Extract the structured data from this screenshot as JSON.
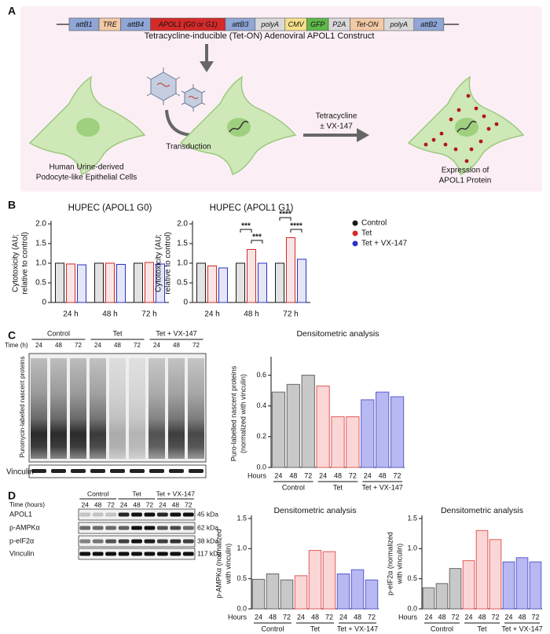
{
  "panel_labels": [
    "A",
    "B",
    "C",
    "D"
  ],
  "construct": {
    "title": "Tetracycline-inducible (Tet-ON) Adenoviral APOL1 Construct",
    "elements": [
      {
        "label": "attB1",
        "color": "#8fa6d6"
      },
      {
        "label": "TRE",
        "color": "#f3c9a6"
      },
      {
        "label": "attB4",
        "color": "#8fa6d6"
      },
      {
        "label": "APOL1 (G0 or G1)",
        "color": "#d42a2a"
      },
      {
        "label": "attB3",
        "color": "#8fa6d6"
      },
      {
        "label": "polyA",
        "color": "#d9d9d9"
      },
      {
        "label": "CMV",
        "color": "#f6e08a"
      },
      {
        "label": "GFP",
        "color": "#5fb84a"
      },
      {
        "label": "P2A",
        "color": "#d9d9d9"
      },
      {
        "label": "Tet-ON",
        "color": "#f3c9a6"
      },
      {
        "label": "polyA",
        "color": "#d9d9d9"
      },
      {
        "label": "attB2",
        "color": "#8fa6d6"
      }
    ]
  },
  "diagram": {
    "cell_label": [
      "Human Urine-derived",
      "Podocyte-like Epithelial Cells"
    ],
    "transduction": "Transduction",
    "treatment": [
      "Tetracycline",
      "± VX-147"
    ],
    "expression": [
      "Expression of",
      "APOL1 Protein"
    ]
  },
  "blot_c": {
    "groups": [
      "Control",
      "Tet",
      "Tet + VX-147"
    ],
    "time_label": "Time (h)",
    "lanes": [
      "24",
      "48",
      "72",
      "24",
      "48",
      "72",
      "24",
      "48",
      "72"
    ],
    "side_label": "Puromycin-labelled nascent proteins",
    "loading": "Vinculin"
  },
  "blot_d": {
    "groups": [
      "Control",
      "Tet",
      "Tet + VX-147"
    ],
    "time_label": "Time (hours)",
    "lanes": [
      "24",
      "48",
      "72",
      "24",
      "48",
      "72",
      "24",
      "48",
      "72"
    ],
    "rows": [
      {
        "name": "APOL1",
        "size": "45 kDa"
      },
      {
        "name": "p-AMPKα",
        "size": "62 kDa"
      },
      {
        "name": "p-eIF2α",
        "size": "38 kDa"
      },
      {
        "name": "Vinculin",
        "size": "117 kDa"
      }
    ]
  },
  "chart_data": [
    {
      "type": "bar",
      "title": "HUPEC (APOL1 G0)",
      "ylabel": [
        "Cytotoxicity (AU;",
        "relative to control)"
      ],
      "categories": [
        "24 h",
        "48 h",
        "72 h"
      ],
      "series": [
        {
          "color": "#1a1a1a",
          "values": [
            1.0,
            1.0,
            1.0
          ]
        },
        {
          "color": "#d42a2a",
          "values": [
            0.98,
            1.0,
            1.02
          ]
        },
        {
          "color": "#2a35c0",
          "values": [
            0.96,
            0.97,
            0.98
          ]
        }
      ],
      "ylim": [
        0,
        2
      ],
      "yticks": [
        0,
        0.5,
        {
          "value": 1,
          "label": "1.0"
        },
        1.5,
        {
          "value": 2,
          "label": "2.0"
        }
      ]
    },
    {
      "type": "bar",
      "title": "HUPEC (APOL1 G1)",
      "ylabel": [
        "Cytotoxicity (AU;",
        "relative to control)"
      ],
      "categories": [
        "24 h",
        "48 h",
        "72 h"
      ],
      "series": [
        {
          "name": "Control",
          "color": "#1a1a1a",
          "values": [
            1.0,
            1.0,
            1.0
          ]
        },
        {
          "name": "Tet",
          "color": "#d42a2a",
          "values": [
            0.93,
            1.35,
            1.65
          ]
        },
        {
          "name": "Tet + VX-147",
          "color": "#2a35c0",
          "values": [
            0.88,
            1.0,
            1.1
          ]
        }
      ],
      "legend": "right",
      "annotations": [
        "***",
        "***",
        "****",
        "****"
      ],
      "ylim": [
        0,
        2
      ],
      "yticks": [
        0,
        0.5,
        {
          "value": 1,
          "label": "1.0"
        },
        1.5,
        {
          "value": 2,
          "label": "2.0"
        }
      ]
    },
    {
      "type": "bar",
      "title": "Densitometric analysis",
      "ylabel": [
        "Puro-labelled nascent proteins",
        "(normalized with vinculin)"
      ],
      "xlabel": "Hours",
      "categories": [
        "24",
        "48",
        "72"
      ],
      "series": [
        {
          "name": "Control",
          "color": "#c8c8c8",
          "edgecolor": "#666666",
          "values": [
            0.49,
            0.54,
            0.6
          ]
        },
        {
          "name": "Tet",
          "color": "#fbd6d6",
          "edgecolor": "#e05a5a",
          "values": [
            0.53,
            0.33,
            0.33
          ]
        },
        {
          "name": "Tet + VX-147",
          "color": "#b8b8f2",
          "edgecolor": "#5a5ad0",
          "values": [
            0.44,
            0.49,
            0.46
          ]
        }
      ],
      "ylim": [
        0,
        0.7
      ],
      "yticks": [
        {
          "value": 0,
          "label": "0.0"
        },
        0.2,
        0.4,
        0.6
      ]
    },
    {
      "type": "bar",
      "title": "Densitometric analysis",
      "ylabel": [
        "p-AMPKα (normalized",
        "with vinculin)"
      ],
      "xlabel": "Hours",
      "categories": [
        "24",
        "48",
        "72"
      ],
      "series": [
        {
          "name": "Control",
          "color": "#c8c8c8",
          "edgecolor": "#666666",
          "values": [
            0.49,
            0.58,
            0.48
          ]
        },
        {
          "name": "Tet",
          "color": "#fbd6d6",
          "edgecolor": "#e05a5a",
          "values": [
            0.55,
            0.97,
            0.95
          ]
        },
        {
          "name": "Tet + VX-147",
          "color": "#b8b8f2",
          "edgecolor": "#5a5ad0",
          "values": [
            0.58,
            0.65,
            0.48
          ]
        }
      ],
      "ylim": [
        0,
        1.5
      ],
      "yticks": [
        {
          "value": 0,
          "label": "0.0"
        },
        0.5,
        {
          "value": 1,
          "label": "1.0"
        },
        1.5
      ]
    },
    {
      "type": "bar",
      "title": "Densitometric analysis",
      "ylabel": [
        "p-eIF2α (normalized",
        "with vinculin)"
      ],
      "xlabel": "Hours",
      "categories": [
        "24",
        "48",
        "72"
      ],
      "series": [
        {
          "name": "Control",
          "color": "#c8c8c8",
          "edgecolor": "#666666",
          "values": [
            0.35,
            0.42,
            0.67
          ]
        },
        {
          "name": "Tet",
          "color": "#fbd6d6",
          "edgecolor": "#e05a5a",
          "values": [
            0.8,
            1.3,
            1.15
          ]
        },
        {
          "name": "Tet + VX-147",
          "color": "#b8b8f2",
          "edgecolor": "#5a5ad0",
          "values": [
            0.78,
            0.85,
            0.78
          ]
        }
      ],
      "ylim": [
        0,
        1.5
      ],
      "yticks": [
        {
          "value": 0,
          "label": "0.0"
        },
        0.5,
        {
          "value": 1,
          "label": "1.0"
        },
        1.5
      ]
    }
  ]
}
